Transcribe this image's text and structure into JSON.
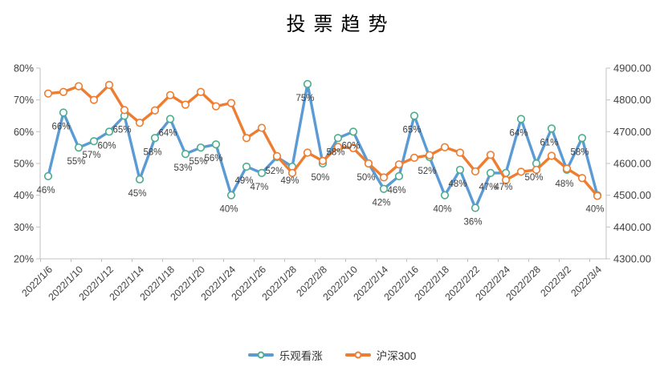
{
  "title": "投票趋势",
  "chart_data": {
    "type": "line",
    "title": "投票趋势",
    "point_count": 37,
    "x_tick_labels": [
      "2022/1/6",
      "2022/1/10",
      "2022/1/12",
      "2022/1/14",
      "2022/1/18",
      "2022/1/20",
      "2022/1/24",
      "2022/1/26",
      "2022/1/28",
      "2022/2/8",
      "2022/2/10",
      "2022/2/14",
      "2022/2/16",
      "2022/2/18",
      "2022/2/22",
      "2022/2/24",
      "2022/2/28",
      "2022/3/2",
      "2022/3/4"
    ],
    "x_tick_interval": 2,
    "left_axis": {
      "min": 20,
      "max": 80,
      "step": 10,
      "tick_labels": [
        "80%",
        "70%",
        "60%",
        "50%",
        "40%",
        "30%",
        "20%"
      ]
    },
    "right_axis": {
      "min": 4300,
      "max": 4900,
      "step": 100,
      "tick_labels": [
        "4900.00",
        "4800.00",
        "4700.00",
        "4600.00",
        "4500.00",
        "4400.00",
        "4300.00"
      ]
    },
    "series": [
      {
        "name": "乐观看涨",
        "axis": "left",
        "line_color": "#5B9BD5",
        "marker_outline": "#4CAE8C",
        "marker_fill": "#FFFFFF",
        "show_data_labels": true,
        "label_suffix": "%",
        "values": [
          46,
          66,
          55,
          57,
          60,
          65,
          45,
          58,
          64,
          53,
          55,
          56,
          40,
          49,
          47,
          52,
          49,
          75,
          50,
          58,
          60,
          50,
          42,
          46,
          65,
          52,
          40,
          48,
          36,
          47,
          47,
          64,
          50,
          61,
          48,
          58,
          40
        ]
      },
      {
        "name": "沪深300",
        "axis": "right",
        "line_color": "#ED7D31",
        "marker_outline": "#ED7D31",
        "marker_fill": "#FFFFFF",
        "show_data_labels": false,
        "values": [
          4820,
          4825,
          4843,
          4800,
          4847,
          4768,
          4728,
          4767,
          4815,
          4785,
          4825,
          4780,
          4790,
          4680,
          4712,
          4623,
          4570,
          4634,
          4608,
          4652,
          4648,
          4600,
          4556,
          4597,
          4618,
          4626,
          4651,
          4634,
          4575,
          4627,
          4548,
          4574,
          4580,
          4624,
          4584,
          4554,
          4498
        ]
      }
    ],
    "legend": {
      "position": "bottom",
      "items": [
        {
          "label": "乐观看涨",
          "color": "#5B9BD5",
          "marker_outline": "#4CAE8C"
        },
        {
          "label": "沪深300",
          "color": "#ED7D31",
          "marker_outline": "#ED7D31"
        }
      ]
    },
    "grid": false,
    "colors": {
      "axis_line": "#C0C0C0",
      "tick_text": "#404040",
      "data_label": "#404040",
      "background": "#FFFFFF"
    }
  }
}
